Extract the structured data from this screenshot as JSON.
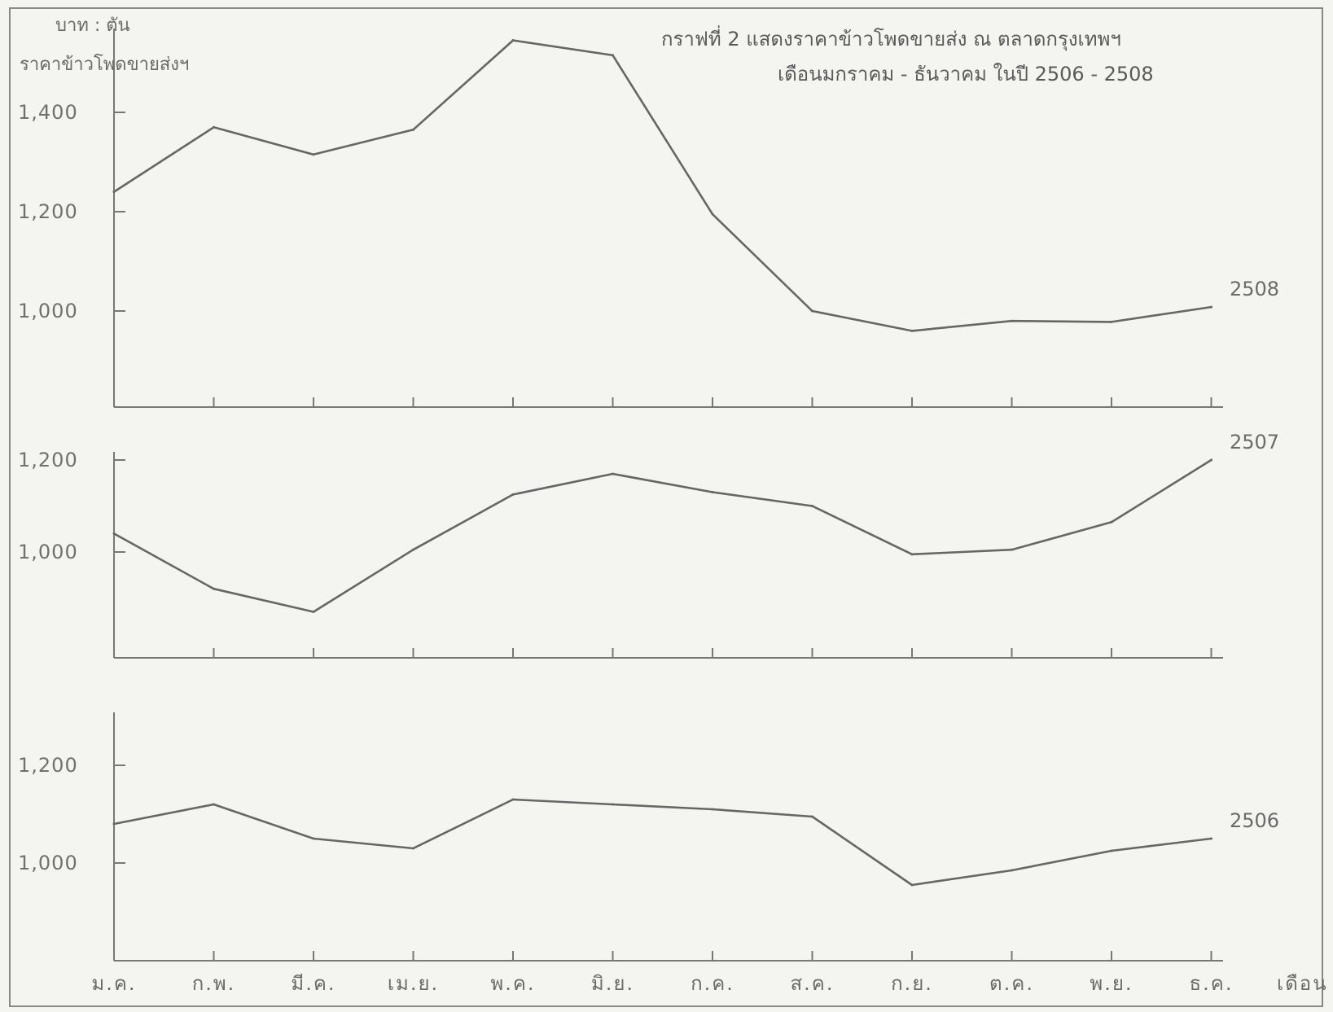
{
  "chart_data": {
    "type": "line",
    "title": "กราฟที่ 2 แสดงราคาข้าวโพดขายส่ง ณ ตลาดกรุงเทพฯ",
    "subtitle": "เดือนมกราคม - ธันวาคม ในปี 2506 - 2508",
    "unit_label": "บาท : ตัน",
    "ylabel": "ราคาข้าวโพดขายส่งฯ",
    "xlabel": "เดือน",
    "categories": [
      "ม.ค.",
      "ก.พ.",
      "มี.ค.",
      "เม.ย.",
      "พ.ค.",
      "มิ.ย.",
      "ก.ค.",
      "ส.ค.",
      "ก.ย.",
      "ต.ค.",
      "พ.ย.",
      "ธ.ค."
    ],
    "panels": [
      {
        "series_name": "2508",
        "yticks": [
          1000,
          1200,
          1400
        ],
        "ytick_labels": [
          "1,000",
          "1,200",
          "1,400"
        ],
        "ylim": [
          800,
          1550
        ],
        "values": [
          1240,
          1370,
          1315,
          1365,
          1545,
          1515,
          1195,
          1000,
          960,
          980,
          978,
          1008
        ]
      },
      {
        "series_name": "2507",
        "yticks": [
          1000,
          1200
        ],
        "ytick_labels": [
          "1,000",
          "1,200"
        ],
        "ylim": [
          800,
          1250
        ],
        "values": [
          1040,
          920,
          870,
          1005,
          1125,
          1170,
          1130,
          1100,
          995,
          1005,
          1065,
          1200
        ]
      },
      {
        "series_name": "2506",
        "yticks": [
          1000,
          1200
        ],
        "ytick_labels": [
          "1,000",
          "1,200"
        ],
        "ylim": [
          800,
          1250
        ],
        "values": [
          1080,
          1120,
          1050,
          1030,
          1130,
          1120,
          1110,
          1095,
          955,
          985,
          1025,
          1050
        ]
      }
    ]
  }
}
